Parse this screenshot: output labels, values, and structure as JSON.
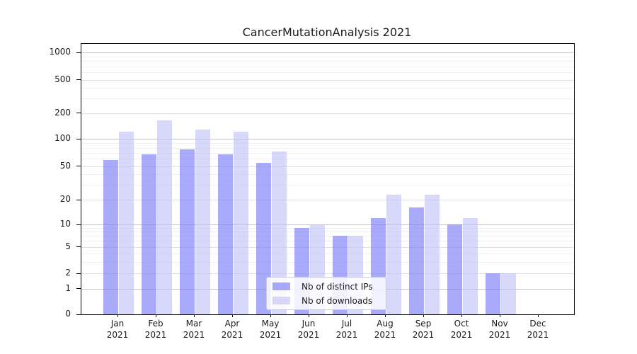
{
  "chart_data": {
    "type": "bar",
    "title": "CancerMutationAnalysis 2021",
    "categories": [
      "Jan 2021",
      "Feb 2021",
      "Mar 2021",
      "Apr 2021",
      "May 2021",
      "Jun 2021",
      "Jul 2021",
      "Aug 2021",
      "Sep 2021",
      "Oct 2021",
      "Nov 2021",
      "Dec 2021"
    ],
    "categories_split": [
      {
        "month": "Jan",
        "year": "2021"
      },
      {
        "month": "Feb",
        "year": "2021"
      },
      {
        "month": "Mar",
        "year": "2021"
      },
      {
        "month": "Apr",
        "year": "2021"
      },
      {
        "month": "May",
        "year": "2021"
      },
      {
        "month": "Jun",
        "year": "2021"
      },
      {
        "month": "Jul",
        "year": "2021"
      },
      {
        "month": "Aug",
        "year": "2021"
      },
      {
        "month": "Sep",
        "year": "2021"
      },
      {
        "month": "Oct",
        "year": "2021"
      },
      {
        "month": "Nov",
        "year": "2021"
      },
      {
        "month": "Dec",
        "year": "2021"
      }
    ],
    "series": [
      {
        "key": "distinct-ips",
        "name": "Nb of distinct IPs",
        "color": "#7c7cf8",
        "alpha": 0.65,
        "values": [
          58,
          68,
          77,
          67,
          54,
          9,
          7,
          12,
          16,
          10,
          2,
          0
        ]
      },
      {
        "key": "downloads",
        "name": "Nb of downloads",
        "color": "#bebef7",
        "alpha": 0.6,
        "values": [
          122,
          163,
          128,
          121,
          72,
          10,
          7,
          23,
          23,
          12,
          2,
          0
        ]
      }
    ],
    "yscale": "symlog",
    "yticks": [
      0,
      1,
      2,
      5,
      10,
      20,
      50,
      100,
      200,
      500,
      1000
    ],
    "ylim": [
      0,
      1000
    ],
    "xlabel": "",
    "ylabel": "",
    "grid": true,
    "legend_position": "lower center"
  }
}
